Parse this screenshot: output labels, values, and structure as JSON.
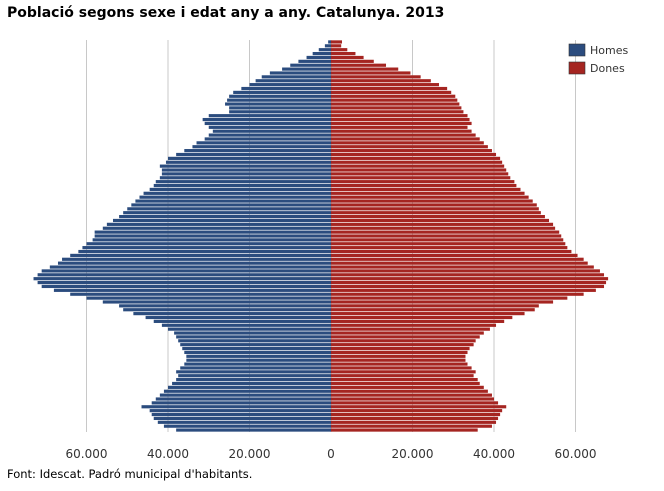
{
  "chart_data": {
    "type": "bar",
    "orientation": "horizontal-population-pyramid",
    "title": "Població segons sexe i edat any a any. Catalunya. 2013",
    "source": "Font: Idescat. Padró municipal d'habitants.",
    "x_tick_values": [
      -60000,
      -40000,
      -20000,
      0,
      20000,
      40000,
      60000
    ],
    "x_tick_labels": [
      "60.000",
      "40.000",
      "20.000",
      "0",
      "20.000",
      "40.000",
      "60.000"
    ],
    "xlim": [
      -72000,
      72000
    ],
    "grid": "vertical",
    "legend_position": "top-right",
    "categories_note": "ages 0 (bottom) to 100 (top), one bar per year",
    "series": [
      {
        "name": "Homes",
        "color": "#2B4C7E",
        "values": [
          38000,
          41000,
          42500,
          43500,
          44000,
          44500,
          46500,
          44000,
          43000,
          42000,
          41000,
          40000,
          39000,
          38000,
          37500,
          38000,
          37000,
          36000,
          35500,
          35500,
          36000,
          36500,
          37000,
          37500,
          38000,
          38500,
          40000,
          41500,
          43500,
          45500,
          48500,
          51000,
          52000,
          56000,
          60000,
          64000,
          68000,
          71000,
          72000,
          73000,
          72000,
          71000,
          69000,
          67000,
          66000,
          64000,
          62000,
          61000,
          60000,
          58500,
          58000,
          58000,
          56000,
          55000,
          53500,
          52000,
          51000,
          50000,
          49000,
          48000,
          47000,
          46000,
          44500,
          43500,
          43000,
          42000,
          41500,
          41500,
          42000,
          40500,
          40000,
          38000,
          36000,
          34000,
          33000,
          31000,
          30000,
          29000,
          30000,
          31000,
          31500,
          30000,
          25000,
          25000,
          26000,
          25500,
          25000,
          24000,
          22000,
          20000,
          18500,
          17000,
          15000,
          12000,
          10000,
          8000,
          6000,
          4500,
          3000,
          1500,
          700
        ],
        "legend_label": "Homes"
      },
      {
        "name": "Dones",
        "color": "#A52521",
        "values": [
          36000,
          39500,
          40500,
          41000,
          41500,
          42000,
          43000,
          41000,
          40000,
          39500,
          38500,
          37500,
          36500,
          36000,
          35000,
          35500,
          34500,
          33500,
          33000,
          33000,
          33500,
          34000,
          35000,
          35500,
          36500,
          37500,
          39000,
          40500,
          42500,
          44500,
          47500,
          50000,
          51000,
          54500,
          58000,
          62000,
          65000,
          67000,
          67500,
          68000,
          67000,
          66000,
          64500,
          63000,
          62000,
          60500,
          59000,
          58000,
          57500,
          57000,
          56500,
          56000,
          55000,
          54500,
          53500,
          52500,
          51500,
          51000,
          50500,
          49500,
          48500,
          47500,
          46500,
          45500,
          45000,
          44000,
          43500,
          43000,
          42500,
          42000,
          41500,
          40500,
          39500,
          38500,
          37500,
          36500,
          35500,
          34500,
          33500,
          34500,
          34000,
          33500,
          32500,
          32000,
          31500,
          31000,
          30500,
          29500,
          28500,
          26500,
          24500,
          22000,
          19500,
          16500,
          13500,
          10500,
          8000,
          6000,
          4000,
          2500,
          2700
        ],
        "legend_label": "Dones"
      }
    ]
  }
}
